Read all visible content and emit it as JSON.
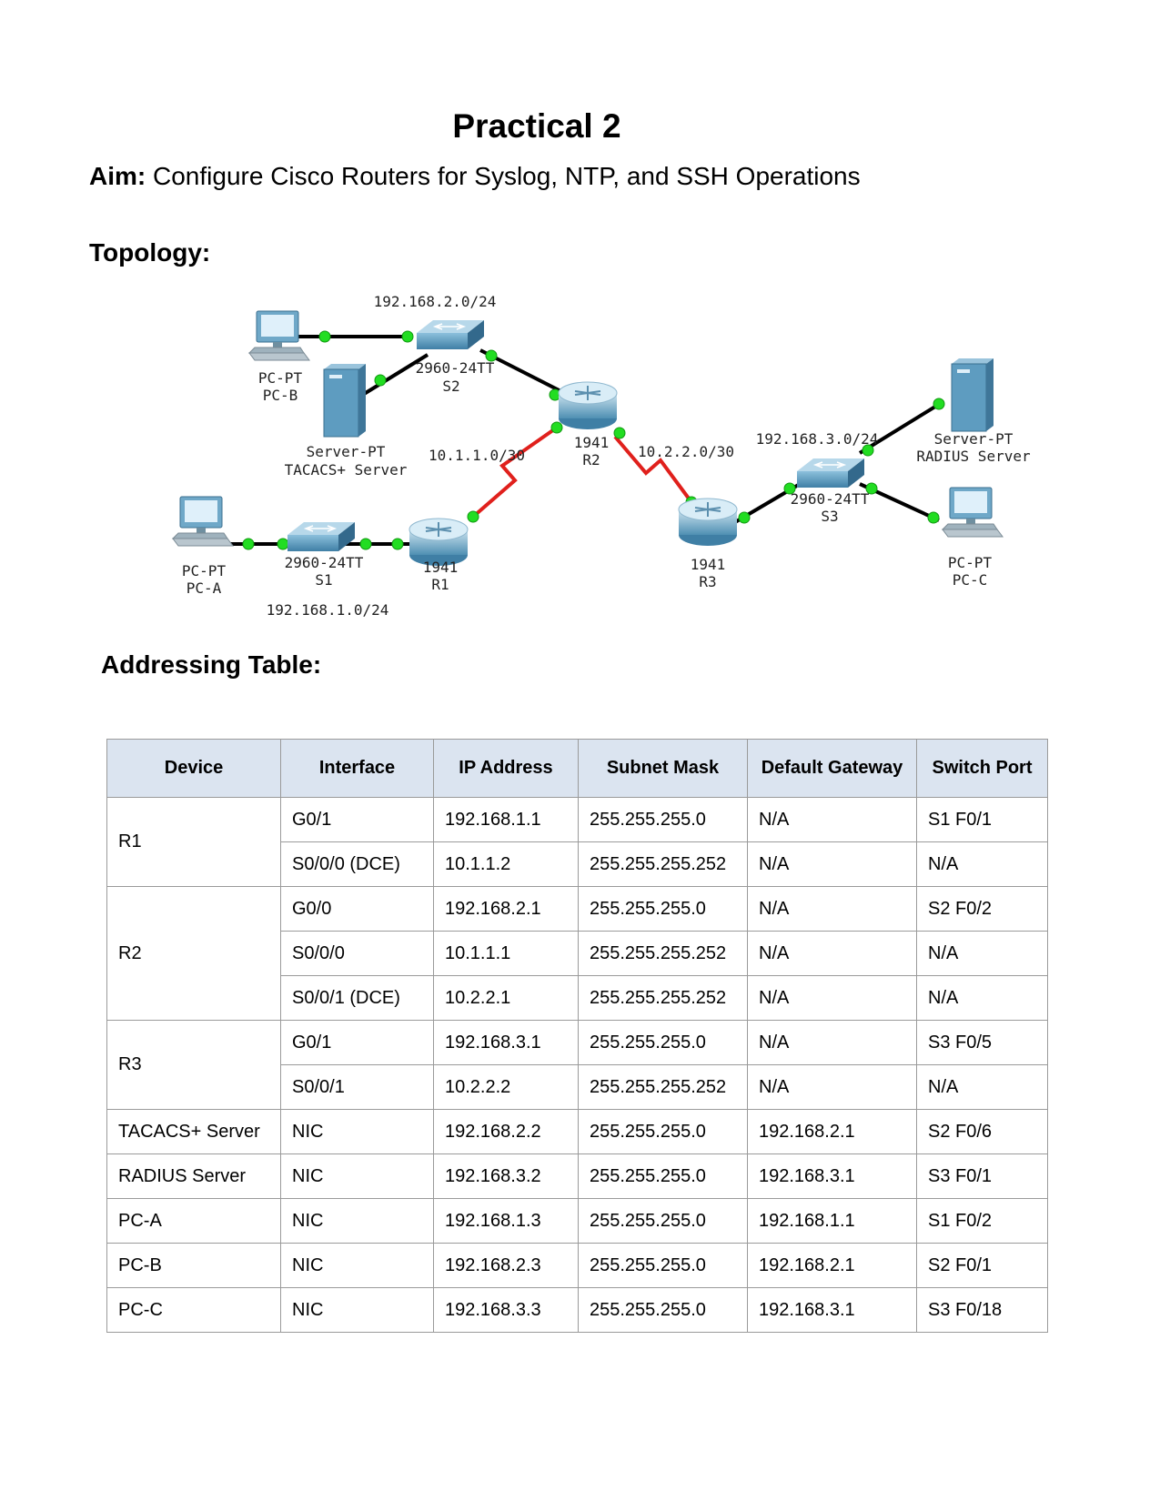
{
  "title": "Practical 2",
  "aim": {
    "label": "Aim:",
    "text": "Configure Cisco Routers for Syslog, NTP, and SSH Operations"
  },
  "topology_heading": "Topology:",
  "table_heading": "Addressing Table:",
  "topology": {
    "devices": {
      "pcb": [
        "PC-PT",
        "PC-B"
      ],
      "tacacs": [
        "Server-PT",
        "TACACS+ Server"
      ],
      "s2": [
        "2960-24TT",
        "S2"
      ],
      "r2": [
        "1941",
        "R2"
      ],
      "pca": [
        "PC-PT",
        "PC-A"
      ],
      "s1": [
        "2960-24TT",
        "S1"
      ],
      "r1": [
        "1941",
        "R1"
      ],
      "r3": [
        "1941",
        "R3"
      ],
      "s3": [
        "2960-24TT",
        "S3"
      ],
      "radius": [
        "Server-PT",
        "RADIUS Server"
      ],
      "pcc": [
        "PC-PT",
        "PC-C"
      ]
    },
    "networks": {
      "lan2": "192.168.2.0/24",
      "wan1": "10.1.1.0/30",
      "wan2": "10.2.2.0/30",
      "lan3": "192.168.3.0/24",
      "lan1": "192.168.1.0/24"
    },
    "colors": {
      "ethernet": "#000000",
      "serial": "#e0201c",
      "link_up": "#22dd22",
      "device": "#5b9cc0"
    }
  },
  "address_table": {
    "headers": [
      "Device",
      "Interface",
      "IP Address",
      "Subnet Mask",
      "Default Gateway",
      "Switch Port"
    ],
    "groups": [
      {
        "device": "R1",
        "rows": [
          [
            "G0/1",
            "192.168.1.1",
            "255.255.255.0",
            "N/A",
            "S1 F0/1"
          ],
          [
            "S0/0/0 (DCE)",
            "10.1.1.2",
            "255.255.255.252",
            "N/A",
            "N/A"
          ]
        ]
      },
      {
        "device": "R2",
        "rows": [
          [
            "G0/0",
            "192.168.2.1",
            "255.255.255.0",
            "N/A",
            "S2 F0/2"
          ],
          [
            "S0/0/0",
            "10.1.1.1",
            "255.255.255.252",
            "N/A",
            "N/A"
          ],
          [
            "S0/0/1 (DCE)",
            "10.2.2.1",
            "255.255.255.252",
            "N/A",
            "N/A"
          ]
        ]
      },
      {
        "device": "R3",
        "rows": [
          [
            "G0/1",
            "192.168.3.1",
            "255.255.255.0",
            "N/A",
            "S3 F0/5"
          ],
          [
            "S0/0/1",
            "10.2.2.2",
            "255.255.255.252",
            "N/A",
            "N/A"
          ]
        ]
      },
      {
        "device": "TACACS+ Server",
        "rows": [
          [
            "NIC",
            "192.168.2.2",
            "255.255.255.0",
            "192.168.2.1",
            "S2 F0/6"
          ]
        ]
      },
      {
        "device": "RADIUS Server",
        "rows": [
          [
            "NIC",
            "192.168.3.2",
            "255.255.255.0",
            "192.168.3.1",
            "S3 F0/1"
          ]
        ]
      },
      {
        "device": "PC-A",
        "rows": [
          [
            "NIC",
            "192.168.1.3",
            "255.255.255.0",
            "192.168.1.1",
            "S1 F0/2"
          ]
        ]
      },
      {
        "device": "PC-B",
        "rows": [
          [
            "NIC",
            "192.168.2.3",
            "255.255.255.0",
            "192.168.2.1",
            "S2 F0/1"
          ]
        ]
      },
      {
        "device": "PC-C",
        "rows": [
          [
            "NIC",
            "192.168.3.3",
            "255.255.255.0",
            "192.168.3.1",
            "S3 F0/18"
          ]
        ]
      }
    ]
  }
}
